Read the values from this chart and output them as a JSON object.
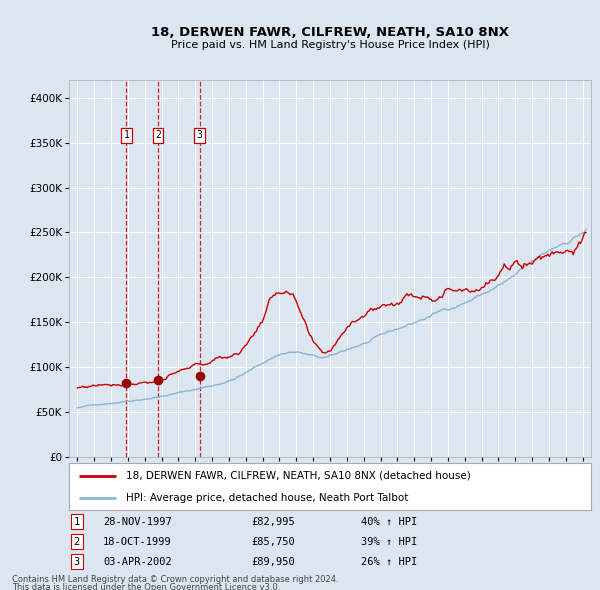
{
  "title": "18, DERWEN FAWR, CILFREW, NEATH, SA10 8NX",
  "subtitle": "Price paid vs. HM Land Registry's House Price Index (HPI)",
  "plot_bg_color": "#dce6f1",
  "fig_bg_color": "#dce6f1",
  "grid_color": "#ffffff",
  "red_line_color": "#cc0000",
  "blue_line_color": "#8ab4d4",
  "sale_dot_color": "#990000",
  "vline_color": "#cc0000",
  "legend_line1": "18, DERWEN FAWR, CILFREW, NEATH, SA10 8NX (detached house)",
  "legend_line2": "HPI: Average price, detached house, Neath Port Talbot",
  "footer1": "Contains HM Land Registry data © Crown copyright and database right 2024.",
  "footer2": "This data is licensed under the Open Government Licence v3.0.",
  "sales": [
    {
      "num": 1,
      "date": "28-NOV-1997",
      "price": 82995,
      "pct": "40%",
      "dir": "↑"
    },
    {
      "num": 2,
      "date": "18-OCT-1999",
      "price": 85750,
      "pct": "39%",
      "dir": "↑"
    },
    {
      "num": 3,
      "date": "03-APR-2002",
      "price": 89950,
      "pct": "26%",
      "dir": "↑"
    }
  ],
  "sale_years": [
    1997.91,
    1999.79,
    2002.25
  ],
  "sale_prices": [
    82995,
    85750,
    89950
  ],
  "ylim": [
    0,
    420000
  ],
  "yticks": [
    0,
    50000,
    100000,
    150000,
    200000,
    250000,
    300000,
    350000,
    400000
  ],
  "xlim_start": 1994.5,
  "xlim_end": 2025.5,
  "xtick_start": 1995,
  "xtick_end": 2025
}
